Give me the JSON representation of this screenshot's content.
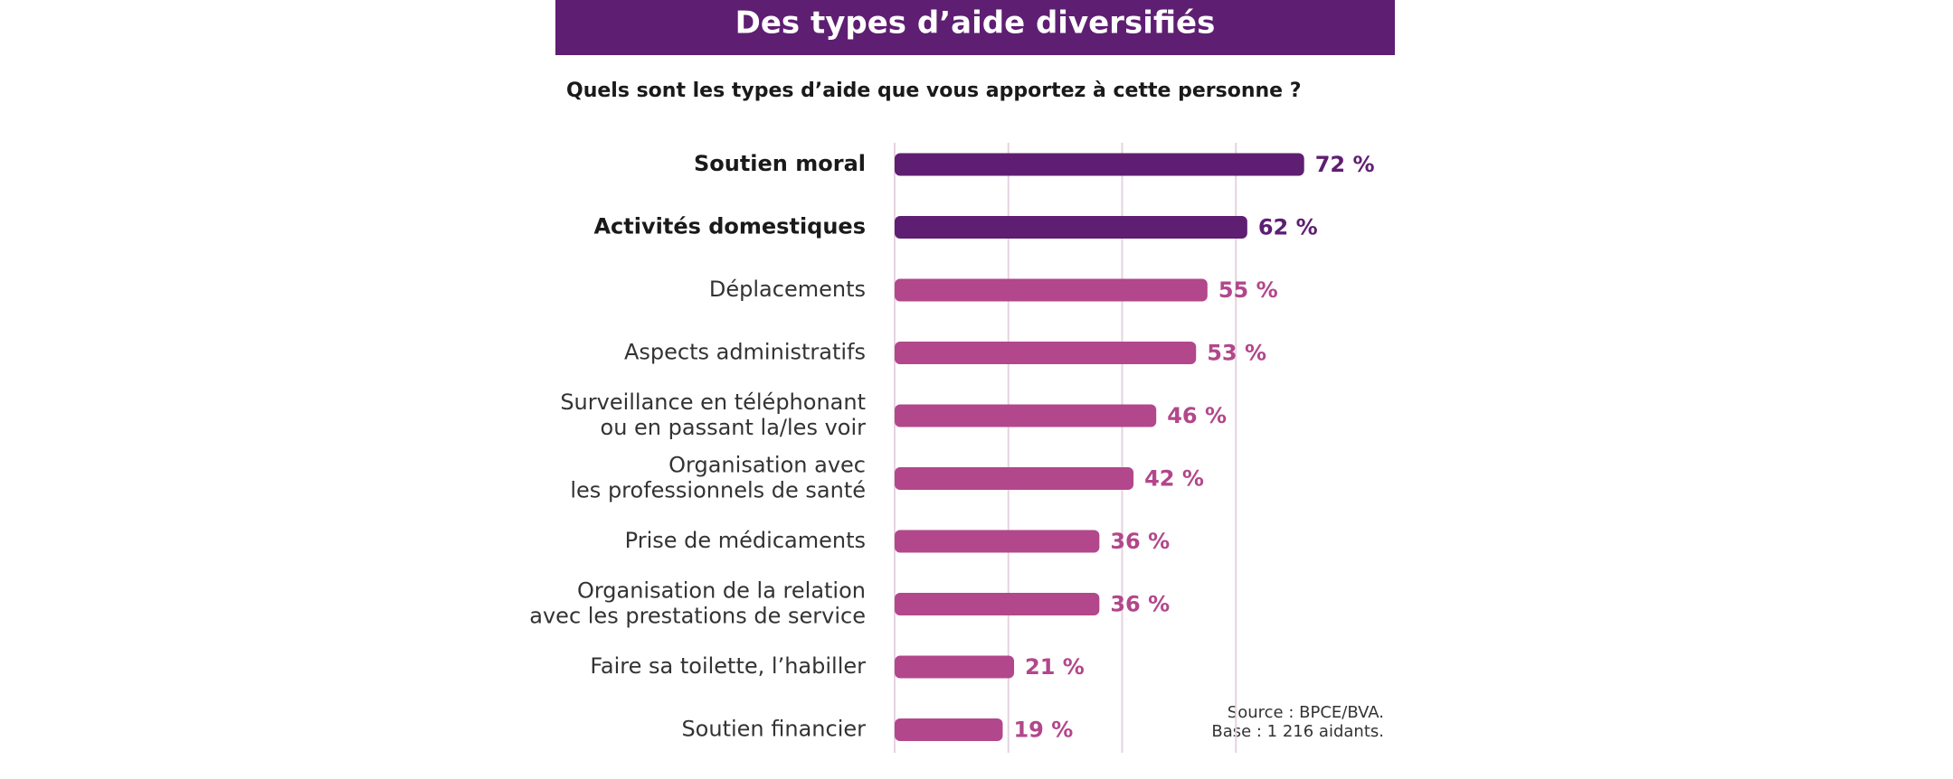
{
  "chart_data": {
    "type": "bar",
    "orientation": "horizontal",
    "title": "Des types d’aide diversifiés",
    "subtitle": "Quels sont les types d’aide que vous apportez à cette personne ?",
    "categories": [
      [
        "Soutien moral"
      ],
      [
        "Activités domestiques"
      ],
      [
        "Déplacements"
      ],
      [
        "Aspects administratifs"
      ],
      [
        "Surveillance en téléphonant",
        "ou en passant la/les voir"
      ],
      [
        "Organisation avec",
        "les professionnels de santé"
      ],
      [
        "Prise de médicaments"
      ],
      [
        "Organisation de la relation",
        "avec les prestations de service"
      ],
      [
        "Faire sa toilette, l’habiller"
      ],
      [
        "Soutien financier"
      ]
    ],
    "values": [
      72,
      62,
      55,
      53,
      46,
      42,
      36,
      36,
      21,
      19
    ],
    "value_labels": [
      "72 %",
      "62 %",
      "55 %",
      "53 %",
      "46 %",
      "42 %",
      "36 %",
      "36 %",
      "21 %",
      "19 %"
    ],
    "colors": [
      "#5e1e72",
      "#5e1e72",
      "#b2478b",
      "#b2478b",
      "#b2478b",
      "#b2478b",
      "#b2478b",
      "#b2478b",
      "#b2478b",
      "#b2478b"
    ],
    "label_colors": [
      "#1a1a1a",
      "#1a1a1a",
      "#333333",
      "#333333",
      "#333333",
      "#333333",
      "#333333",
      "#333333",
      "#333333",
      "#333333"
    ],
    "xlim": [
      0,
      80
    ],
    "xticks": [
      0,
      20,
      40,
      60
    ],
    "grid": true,
    "annotations": [
      "Source : BPCE/BVA.",
      "Base : 1 216 aidants."
    ]
  }
}
